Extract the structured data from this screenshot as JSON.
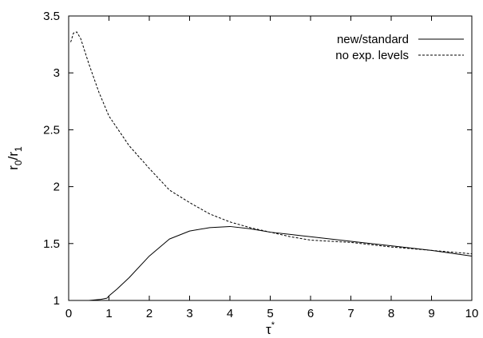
{
  "chart_data": {
    "type": "line",
    "title": "",
    "xlabel": {
      "base": "τ",
      "sup": "*"
    },
    "ylabel": {
      "r0_base": "r",
      "r0_sub": "0",
      "sep": "/",
      "r1_base": "r",
      "r1_sub": "1"
    },
    "xlim": [
      0,
      10
    ],
    "ylim": [
      1,
      3.5
    ],
    "xticks": [
      0,
      1,
      2,
      3,
      4,
      5,
      6,
      7,
      8,
      9,
      10
    ],
    "yticks": [
      1,
      1.5,
      2,
      2.5,
      3,
      3.5
    ],
    "xtick_labels": [
      "0",
      "1",
      "2",
      "3",
      "4",
      "5",
      "6",
      "7",
      "8",
      "9",
      "10"
    ],
    "ytick_labels": [
      "1",
      "1.5",
      "2",
      "2.5",
      "3",
      "3.5"
    ],
    "grid": false,
    "legend_position": "top-right",
    "series": [
      {
        "name": "new/standard",
        "style": "solid",
        "color": "#000000",
        "x": [
          0,
          0.5,
          0.8,
          0.95,
          1.0,
          1.2,
          1.5,
          2.0,
          2.5,
          3.0,
          3.5,
          4.0,
          4.5,
          5.0,
          5.5,
          6.0,
          7.0,
          8.0,
          9.0,
          10.0
        ],
        "y": [
          1.0,
          1.0,
          1.01,
          1.02,
          1.04,
          1.1,
          1.2,
          1.39,
          1.54,
          1.61,
          1.64,
          1.65,
          1.63,
          1.6,
          1.58,
          1.56,
          1.52,
          1.48,
          1.44,
          1.39
        ]
      },
      {
        "name": "no exp. levels",
        "style": "dashed",
        "color": "#000000",
        "x": [
          0.05,
          0.12,
          0.2,
          0.3,
          0.5,
          0.75,
          1.0,
          1.5,
          2.0,
          2.5,
          3.0,
          3.5,
          4.0,
          4.5,
          5.0,
          5.5,
          6.0,
          7.0,
          8.0,
          9.0,
          10.0
        ],
        "y": [
          3.27,
          3.35,
          3.36,
          3.3,
          3.08,
          2.83,
          2.62,
          2.36,
          2.16,
          1.97,
          1.86,
          1.76,
          1.69,
          1.64,
          1.6,
          1.56,
          1.53,
          1.51,
          1.47,
          1.44,
          1.41
        ]
      }
    ]
  }
}
